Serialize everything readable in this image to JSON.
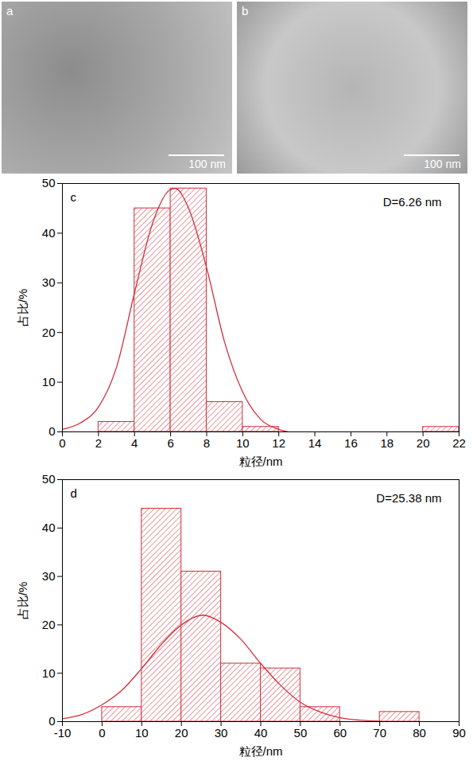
{
  "images": [
    {
      "label": "a",
      "scale_bar": "100 nm"
    },
    {
      "label": "b",
      "scale_bar": "100 nm"
    }
  ],
  "chart_data": [
    {
      "type": "histogram",
      "panel": "c",
      "annotation": "D=6.26 nm",
      "x_label": "粒径/nm",
      "y_label": "占比/%",
      "bins": [
        2,
        4,
        6,
        8,
        10,
        12,
        14,
        16,
        18,
        20,
        22
      ],
      "values": [
        2,
        45,
        49,
        6,
        1,
        0,
        0,
        0,
        0,
        1
      ],
      "color": "#d0303c",
      "xlim": [
        0,
        22
      ],
      "xticks": [
        0,
        2,
        4,
        6,
        8,
        10,
        12,
        14,
        16,
        18,
        20,
        22
      ],
      "ylim": [
        0,
        50
      ],
      "yticks": [
        0,
        10,
        20,
        30,
        40,
        50
      ],
      "series": [
        {
          "type": "line",
          "color": "#d0303c",
          "x": [
            0,
            1,
            2,
            3,
            4,
            5,
            6,
            6.26,
            7,
            8,
            9,
            10,
            11,
            12,
            12.5
          ],
          "values": [
            0.5,
            1.8,
            5,
            13,
            28,
            42,
            48.8,
            49,
            45,
            33,
            18,
            8,
            2.5,
            0.5,
            0
          ]
        }
      ]
    },
    {
      "type": "histogram",
      "panel": "d",
      "annotation": "D=25.38 nm",
      "x_label": "粒径/nm",
      "y_label": "占比/%",
      "bins": [
        0,
        10,
        20,
        30,
        40,
        50,
        60,
        70,
        80
      ],
      "values": [
        3,
        44,
        31,
        12,
        11,
        3,
        0,
        2
      ],
      "color": "#d0303c",
      "xlim": [
        -10,
        90
      ],
      "xticks": [
        -10,
        0,
        10,
        20,
        30,
        40,
        50,
        60,
        70,
        80,
        90
      ],
      "ylim": [
        0,
        50
      ],
      "yticks": [
        0,
        10,
        20,
        30,
        40,
        50
      ],
      "series": [
        {
          "type": "line",
          "color": "#d0303c",
          "x": [
            -10,
            -5,
            0,
            5,
            10,
            15,
            20,
            25.38,
            30,
            35,
            40,
            45,
            50,
            55,
            60,
            65,
            70
          ],
          "values": [
            0.6,
            1.5,
            3.5,
            6.5,
            11,
            16,
            20,
            22,
            20.5,
            17,
            12,
            7.5,
            4,
            2,
            0.8,
            0.3,
            0.1
          ]
        }
      ]
    }
  ]
}
